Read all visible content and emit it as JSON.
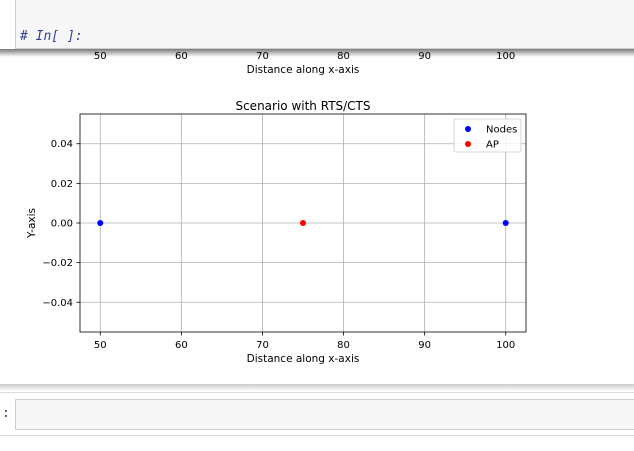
{
  "top_cell": {
    "prompt": "# In[ ]:"
  },
  "previous_output": {
    "x_tick_labels": [
      "50",
      "60",
      "70",
      "80",
      "90",
      "100"
    ],
    "xlabel": "Distance along x-axis"
  },
  "chart_data": {
    "type": "scatter",
    "title": "Scenario with RTS/CTS",
    "xlabel": "Distance along x-axis",
    "ylabel": "Y-axis",
    "xlim": [
      47.5,
      102.5
    ],
    "ylim": [
      -0.055,
      0.055
    ],
    "x_ticks": [
      50,
      60,
      70,
      80,
      90,
      100
    ],
    "y_ticks": [
      0.04,
      0.02,
      0.0,
      -0.02,
      -0.04
    ],
    "x_tick_labels": [
      "50",
      "60",
      "70",
      "80",
      "90",
      "100"
    ],
    "y_tick_labels": [
      "0.04",
      "0.02",
      "0.00",
      "−0.02",
      "−0.04"
    ],
    "grid": true,
    "legend_position": "top-right",
    "series": [
      {
        "name": "Nodes",
        "color": "#0000ff",
        "points": [
          [
            50,
            0
          ],
          [
            100,
            0
          ]
        ]
      },
      {
        "name": "AP",
        "color": "#ff0000",
        "points": [
          [
            75,
            0
          ]
        ]
      }
    ]
  },
  "bottom_cell": {
    "prompt": ":"
  }
}
